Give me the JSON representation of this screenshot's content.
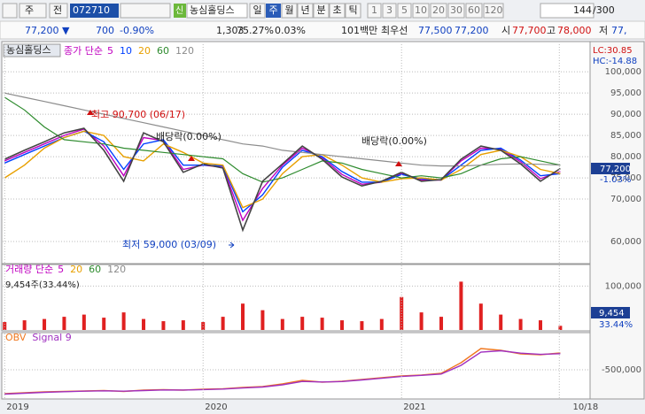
{
  "toolbar": {
    "market": "주",
    "prev": "전",
    "code": "072710",
    "name": "농심홀딩스",
    "new_badge": "신",
    "periods": [
      "일",
      "주",
      "월",
      "년",
      "분",
      "초",
      "틱"
    ],
    "intervals": [
      "1",
      "3",
      "5",
      "10",
      "20",
      "30",
      "60",
      "120"
    ],
    "count": "144",
    "count_max": "/300"
  },
  "info": {
    "price": "77,200 ▼",
    "change": "700",
    "change_pct": "-0.90%",
    "volume": "1,303",
    "vol_ratio": "75.27%",
    "turnover": "0.03%",
    "amount": "101백만",
    "best_label": "최우선",
    "ask": "77,500",
    "bid": "77,200",
    "open_label": "시",
    "open": "77,700",
    "high_label": "고",
    "high": "78,000",
    "low_label": "저",
    "low": "77,"
  },
  "panel_tab": "농심홀딩스",
  "chart_data": [
    {
      "type": "line",
      "legend_label": "종가 단순",
      "lc": "LC:30.85",
      "hc": "HC:-14.88",
      "last_label": "77,200",
      "change_label": "-1.03%",
      "color": "#444444",
      "annotations": [
        "최고 90,700 (06/17)",
        "배당락(0.00%)",
        "배당락(0.00%)",
        "최저 59,000 (03/09)"
      ],
      "x": [
        2019.0,
        2019.1,
        2019.2,
        2019.3,
        2019.4,
        2019.5,
        2019.6,
        2019.7,
        2019.8,
        2019.9,
        2020.0,
        2020.1,
        2020.2,
        2020.3,
        2020.4,
        2020.5,
        2020.6,
        2020.7,
        2020.8,
        2020.9,
        2021.0,
        2021.1,
        2021.2,
        2021.3,
        2021.4,
        2021.5,
        2021.6,
        2021.7,
        2021.8
      ],
      "values": [
        79400,
        81500,
        83500,
        85600,
        86700,
        81500,
        74200,
        85600,
        83500,
        76300,
        78300,
        77300,
        62700,
        74200,
        78300,
        82500,
        79400,
        75200,
        73100,
        74200,
        76300,
        74200,
        74600,
        79400,
        82500,
        81500,
        78300,
        74200,
        77200
      ],
      "series": [
        {
          "name": "5",
          "color": "#c000c0",
          "values": [
            79000,
            81000,
            83000,
            85000,
            86500,
            82500,
            75500,
            84500,
            83800,
            77000,
            78000,
            77500,
            65000,
            72500,
            78000,
            82000,
            79800,
            75800,
            73500,
            74000,
            76000,
            74500,
            74500,
            79000,
            82000,
            81800,
            78800,
            74800,
            76500
          ]
        },
        {
          "name": "10",
          "color": "#0040ff",
          "values": [
            78500,
            80500,
            82500,
            84500,
            86000,
            83500,
            77000,
            83000,
            84000,
            78000,
            78000,
            77800,
            67000,
            71000,
            77500,
            81500,
            80000,
            76500,
            74000,
            74000,
            75800,
            74800,
            74500,
            78000,
            81500,
            82000,
            79200,
            75500,
            76000
          ]
        },
        {
          "name": "20",
          "color": "#e8a000",
          "values": [
            75000,
            78000,
            82000,
            84500,
            86000,
            85000,
            80000,
            79000,
            83000,
            81000,
            78500,
            78000,
            68000,
            70000,
            76000,
            80000,
            80500,
            78000,
            75000,
            74000,
            74800,
            75000,
            74500,
            77000,
            80500,
            81500,
            80000,
            77000,
            76000
          ]
        },
        {
          "name": "60",
          "color": "#2e8b2e",
          "values": [
            94000,
            91000,
            87000,
            84000,
            83500,
            83000,
            82000,
            81500,
            81000,
            80500,
            80000,
            79500,
            76000,
            74000,
            75000,
            77000,
            79000,
            78500,
            77000,
            76000,
            75000,
            75500,
            75000,
            76000,
            78000,
            79500,
            80000,
            79000,
            78000
          ]
        },
        {
          "name": "120",
          "color": "#8c8c8c",
          "values": [
            95000,
            94000,
            93000,
            92000,
            91000,
            90000,
            89000,
            88000,
            87000,
            86000,
            85000,
            84000,
            83000,
            82500,
            81500,
            81000,
            80500,
            80000,
            79500,
            79000,
            78500,
            78000,
            77800,
            77800,
            78000,
            78200,
            78300,
            78200,
            78000
          ]
        }
      ],
      "xlim": [
        2018.99,
        2021.95
      ],
      "ylim": [
        55000,
        106500
      ],
      "yticks": [
        {
          "value": 60000,
          "label": "60,000"
        },
        {
          "value": 70000,
          "label": "70,000"
        },
        {
          "value": 75000,
          "label": "75,000"
        },
        {
          "value": 80000,
          "label": "80,000"
        },
        {
          "value": 85000,
          "label": "85,000"
        },
        {
          "value": 90000,
          "label": "90,000"
        },
        {
          "value": 95000,
          "label": "95,000"
        },
        {
          "value": 100000,
          "label": "100,000"
        }
      ],
      "grid": true
    },
    {
      "type": "bar",
      "legend_label": "거래량 단순",
      "status": "9,454주(33.44%)",
      "last_label": "9,454",
      "ratio_label": "33.44%",
      "color": "#e02020",
      "legend_items": [
        {
          "label": "5",
          "color": "#c000c0"
        },
        {
          "label": "20",
          "color": "#e8a000"
        },
        {
          "label": "60",
          "color": "#2e8b2e"
        },
        {
          "label": "120",
          "color": "#8c8c8c"
        }
      ],
      "x": [
        2019.0,
        2019.1,
        2019.2,
        2019.3,
        2019.4,
        2019.5,
        2019.6,
        2019.7,
        2019.8,
        2019.9,
        2020.0,
        2020.1,
        2020.2,
        2020.3,
        2020.4,
        2020.5,
        2020.6,
        2020.7,
        2020.8,
        2020.9,
        2021.0,
        2021.1,
        2021.2,
        2021.3,
        2021.4,
        2021.5,
        2021.6,
        2021.7,
        2021.8
      ],
      "values": [
        18000,
        22000,
        25000,
        30000,
        35000,
        28000,
        40000,
        25000,
        20000,
        22000,
        18000,
        30000,
        60000,
        45000,
        25000,
        30000,
        28000,
        22000,
        20000,
        25000,
        75000,
        40000,
        30000,
        110000,
        60000,
        35000,
        25000,
        22000,
        9454
      ],
      "xlim": [
        2018.99,
        2021.95
      ],
      "ylim": [
        0,
        147000
      ],
      "yticks": [
        {
          "value": 100000,
          "label": "100,000"
        }
      ],
      "grid": true
    },
    {
      "type": "line",
      "x": [
        2019.0,
        2019.1,
        2019.2,
        2019.3,
        2019.4,
        2019.5,
        2019.6,
        2019.7,
        2019.8,
        2019.9,
        2020.0,
        2020.1,
        2020.2,
        2020.3,
        2020.4,
        2020.5,
        2020.6,
        2020.7,
        2020.8,
        2020.9,
        2021.0,
        2021.1,
        2021.2,
        2021.3,
        2021.4,
        2021.5,
        2021.6,
        2021.7,
        2021.8
      ],
      "series": [
        {
          "name": "OBV",
          "color": "#f07820",
          "values": [
            -770000,
            -760000,
            -750000,
            -745000,
            -740000,
            -735000,
            -745000,
            -730000,
            -725000,
            -730000,
            -720000,
            -715000,
            -700000,
            -690000,
            -660000,
            -620000,
            -640000,
            -630000,
            -610000,
            -590000,
            -570000,
            -560000,
            -540000,
            -420000,
            -260000,
            -280000,
            -320000,
            -330000,
            -310000
          ]
        },
        {
          "name": "Signal 9",
          "color": "#a030c0",
          "values": [
            -775000,
            -765000,
            -755000,
            -748000,
            -742000,
            -738000,
            -742000,
            -735000,
            -728000,
            -729000,
            -724000,
            -718000,
            -706000,
            -695000,
            -670000,
            -632000,
            -638000,
            -633000,
            -615000,
            -596000,
            -576000,
            -563000,
            -548000,
            -450000,
            -300000,
            -285000,
            -312000,
            -326000,
            -318000
          ]
        }
      ],
      "xlim": [
        2018.99,
        2021.95
      ],
      "ylim": [
        -820000,
        -90000
      ],
      "yticks": [
        {
          "value": -500000,
          "label": "-500,000"
        }
      ],
      "xticks": [
        2019,
        2020,
        2021,
        {
          "value": 2021.795,
          "label": "10/18"
        }
      ],
      "grid": true
    }
  ]
}
